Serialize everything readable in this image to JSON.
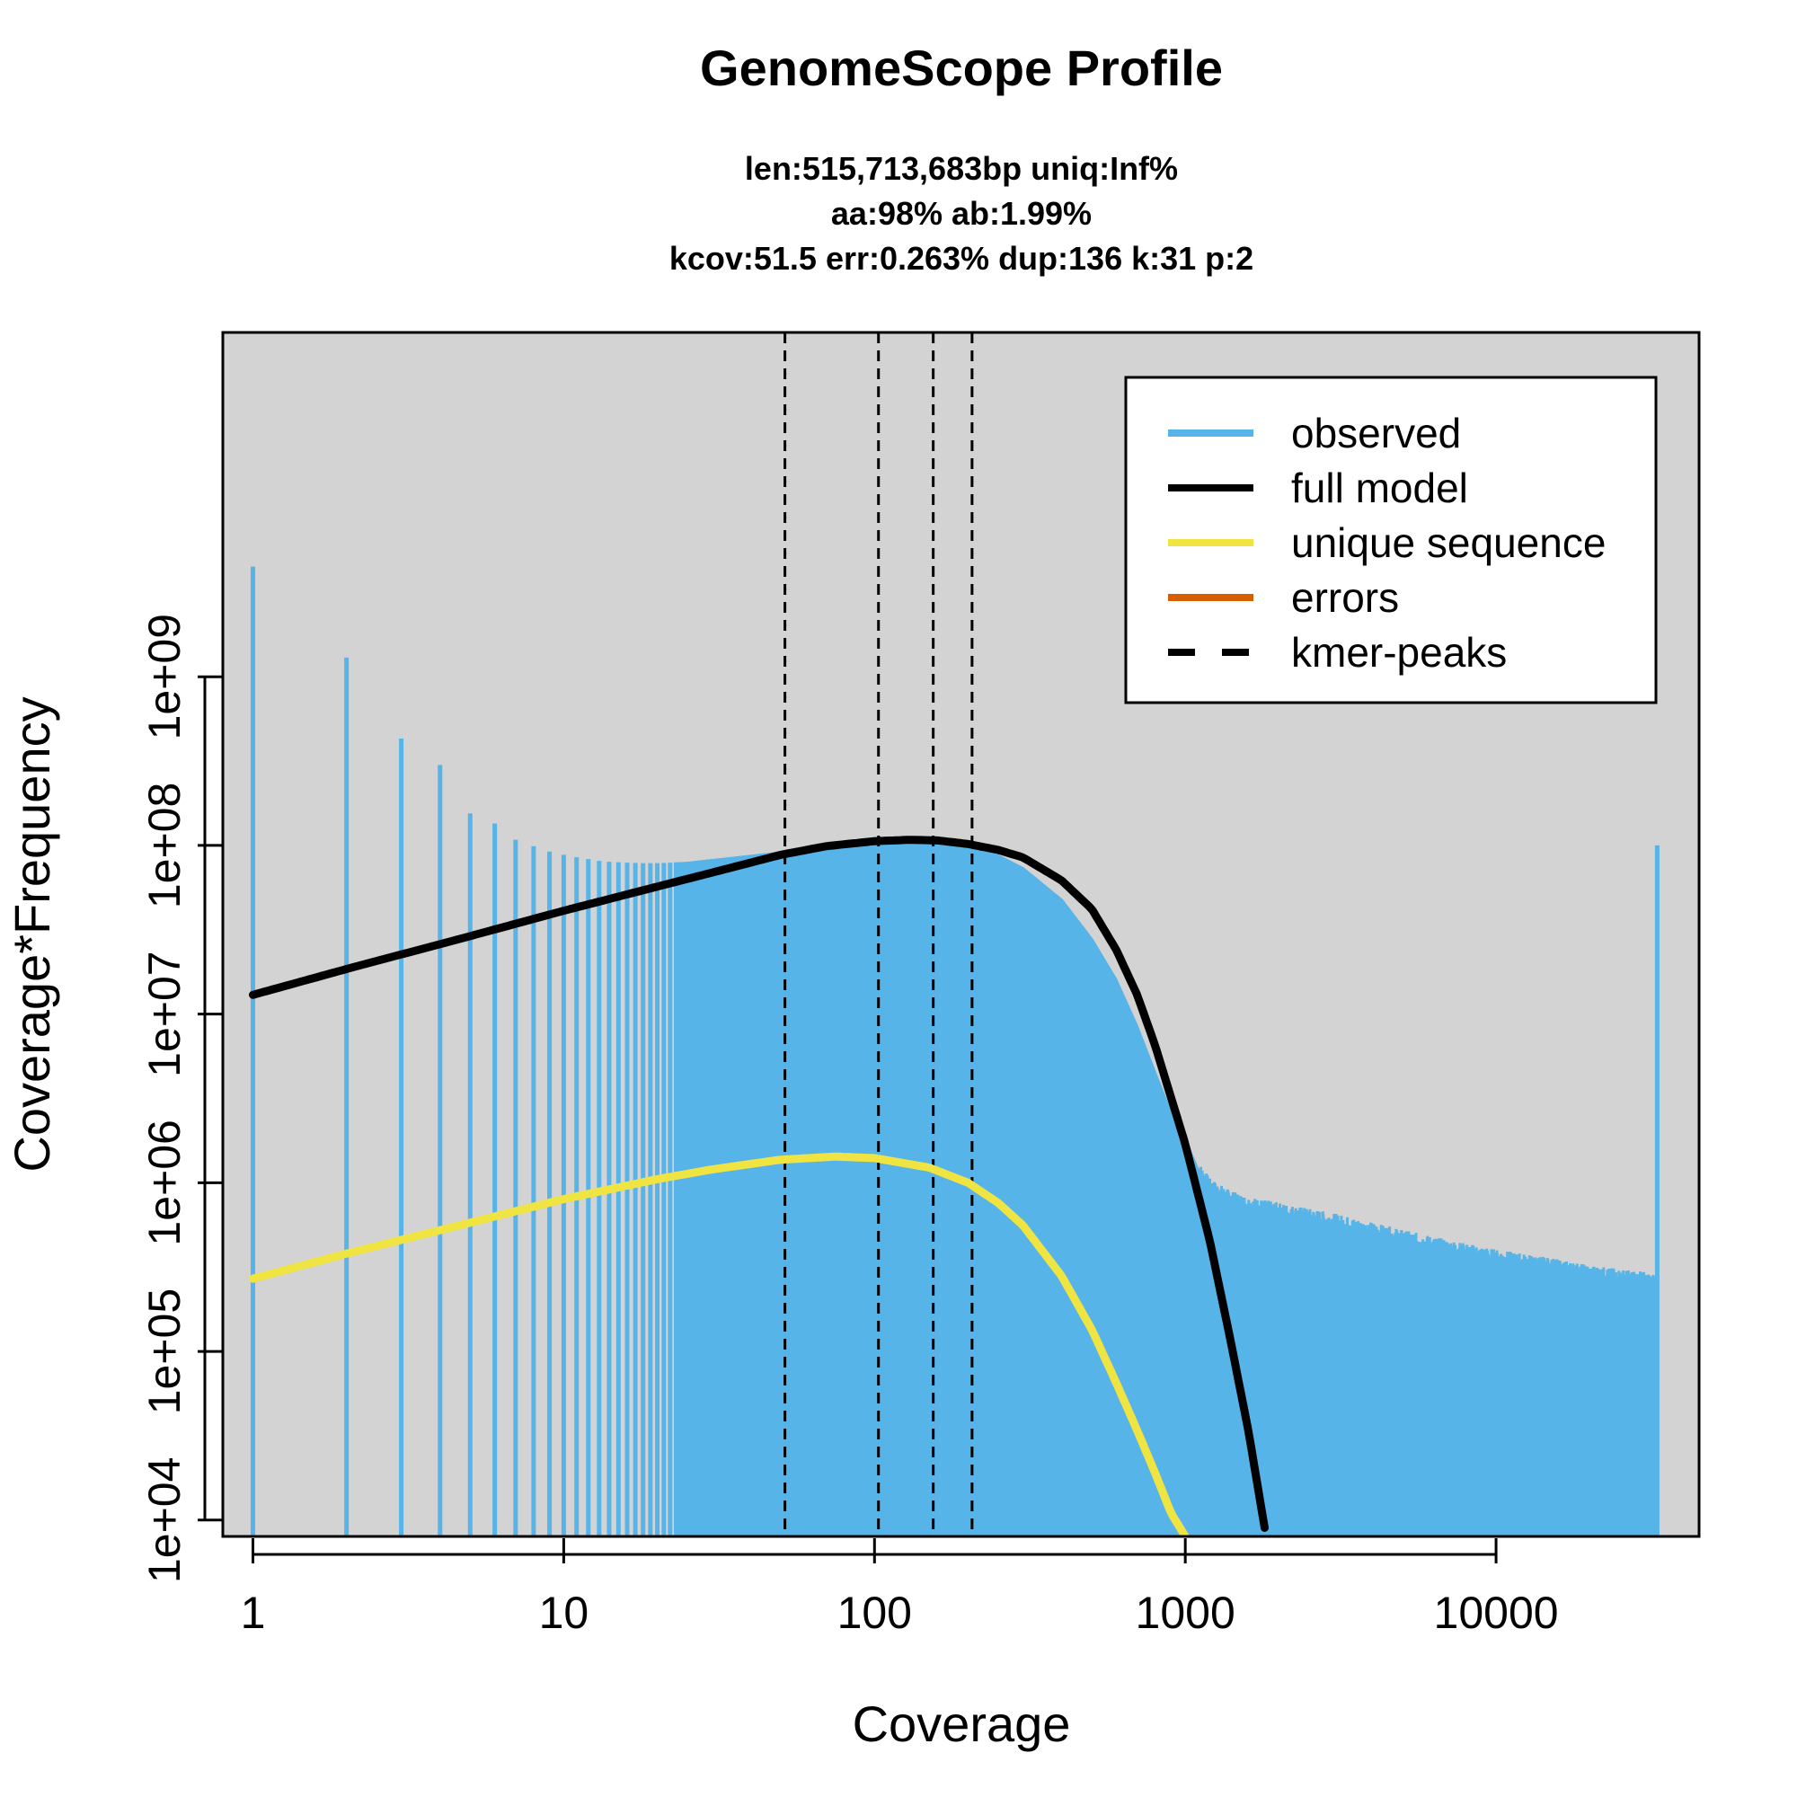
{
  "chart_data": {
    "type": "line",
    "title": "GenomeScope Profile",
    "subtitle_lines": [
      "len:515,713,683bp uniq:Inf%",
      "aa:98% ab:1.99%",
      "kcov:51.5 err:0.263%  dup:136  k:31 p:2"
    ],
    "xlabel": "Coverage",
    "ylabel": "Coverage*Frequency",
    "x_scale": "log",
    "y_scale": "log",
    "xlim": [
      0.8,
      45000
    ],
    "ylim": [
      8000,
      110000000000
    ],
    "x_ticks": [
      {
        "value": 1,
        "label": "1"
      },
      {
        "value": 10,
        "label": "10"
      },
      {
        "value": 100,
        "label": "100"
      },
      {
        "value": 1000,
        "label": "1000"
      },
      {
        "value": 10000,
        "label": "10000"
      }
    ],
    "y_ticks": [
      {
        "value": 10000,
        "label": "1e+04"
      },
      {
        "value": 100000,
        "label": "1e+05"
      },
      {
        "value": 1000000,
        "label": "1e+06"
      },
      {
        "value": 10000000,
        "label": "1e+07"
      },
      {
        "value": 100000000,
        "label": "1e+08"
      },
      {
        "value": 1000000000,
        "label": "1e+09"
      }
    ],
    "plot_background": "#d3d3d3",
    "grid": false,
    "legend_position": "top-right",
    "legend": [
      {
        "label": "observed",
        "color": "#56b4e9",
        "style": "solid"
      },
      {
        "label": "full model",
        "color": "#000000",
        "style": "solid"
      },
      {
        "label": "unique sequence",
        "color": "#f0e442",
        "style": "solid"
      },
      {
        "label": "errors",
        "color": "#d55e00",
        "style": "solid"
      },
      {
        "label": "kmer-peaks",
        "color": "#000000",
        "style": "dashed"
      }
    ],
    "observed": {
      "color": "#56b4e9",
      "type": "histogram-bars",
      "points": [
        [
          1,
          4500000000
        ],
        [
          2,
          1300000000
        ],
        [
          3,
          430000000
        ],
        [
          4,
          300000000
        ],
        [
          5,
          155000000
        ],
        [
          6,
          135000000
        ],
        [
          7,
          108000000
        ],
        [
          8,
          99000000
        ],
        [
          9,
          92000000
        ],
        [
          10,
          88000000
        ],
        [
          11,
          85000000
        ],
        [
          12,
          83000000
        ],
        [
          13,
          81000000
        ],
        [
          14,
          80000000
        ],
        [
          15,
          79500000
        ],
        [
          16,
          79000000
        ],
        [
          18,
          78500000
        ],
        [
          20,
          78500000
        ],
        [
          22,
          79000000
        ],
        [
          25,
          80000000
        ],
        [
          30,
          83000000
        ],
        [
          40,
          88000000
        ],
        [
          50,
          92000000
        ],
        [
          70,
          98000000
        ],
        [
          100,
          105000000
        ],
        [
          130,
          107000000
        ],
        [
          160,
          106000000
        ],
        [
          200,
          100000000
        ],
        [
          250,
          88000000
        ],
        [
          300,
          74000000
        ],
        [
          400,
          48000000
        ],
        [
          500,
          28000000
        ],
        [
          600,
          16000000
        ],
        [
          700,
          8500000
        ],
        [
          800,
          4500000
        ],
        [
          900,
          2600000
        ],
        [
          1000,
          1800000
        ],
        [
          1100,
          1200000
        ],
        [
          1200,
          950000
        ],
        [
          1400,
          800000
        ],
        [
          1600,
          740000
        ],
        [
          2000,
          680000
        ],
        [
          2500,
          630000
        ],
        [
          3000,
          590000
        ],
        [
          4000,
          520000
        ],
        [
          5000,
          470000
        ],
        [
          7000,
          410000
        ],
        [
          10000,
          360000
        ],
        [
          15000,
          320000
        ],
        [
          20000,
          290000
        ],
        [
          25000,
          275000
        ],
        [
          30000,
          265000
        ],
        [
          33000,
          255000
        ]
      ],
      "last_bin": [
        33000,
        100000000
      ]
    },
    "series": [
      {
        "name": "full model",
        "color": "#000000",
        "points": [
          [
            1,
            13000000
          ],
          [
            2,
            18500000
          ],
          [
            5,
            29000000
          ],
          [
            10,
            41000000
          ],
          [
            20,
            57000000
          ],
          [
            30,
            69000000
          ],
          [
            50,
            88000000
          ],
          [
            70,
            99000000
          ],
          [
            100,
            106000000
          ],
          [
            130,
            108000000
          ],
          [
            160,
            107000000
          ],
          [
            200,
            102000000
          ],
          [
            250,
            94000000
          ],
          [
            300,
            85000000
          ],
          [
            400,
            62000000
          ],
          [
            500,
            42000000
          ],
          [
            600,
            24000000
          ],
          [
            700,
            13000000
          ],
          [
            800,
            6500000
          ],
          [
            900,
            3200000
          ],
          [
            1000,
            1700000
          ],
          [
            1200,
            450000
          ],
          [
            1400,
            115000
          ],
          [
            1600,
            33000
          ],
          [
            1800,
            9000
          ]
        ]
      },
      {
        "name": "unique sequence",
        "color": "#f0e442",
        "points": [
          [
            1,
            270000
          ],
          [
            2,
            380000
          ],
          [
            5,
            580000
          ],
          [
            10,
            800000
          ],
          [
            20,
            1050000
          ],
          [
            30,
            1200000
          ],
          [
            50,
            1370000
          ],
          [
            75,
            1430000
          ],
          [
            100,
            1400000
          ],
          [
            150,
            1230000
          ],
          [
            200,
            1000000
          ],
          [
            250,
            760000
          ],
          [
            300,
            560000
          ],
          [
            400,
            280000
          ],
          [
            500,
            135000
          ],
          [
            600,
            65000
          ],
          [
            700,
            34000
          ],
          [
            800,
            19000
          ],
          [
            900,
            11000
          ],
          [
            1000,
            8000
          ]
        ]
      }
    ],
    "kmer_peaks": [
      51.5,
      103,
      154.5,
      206
    ]
  }
}
